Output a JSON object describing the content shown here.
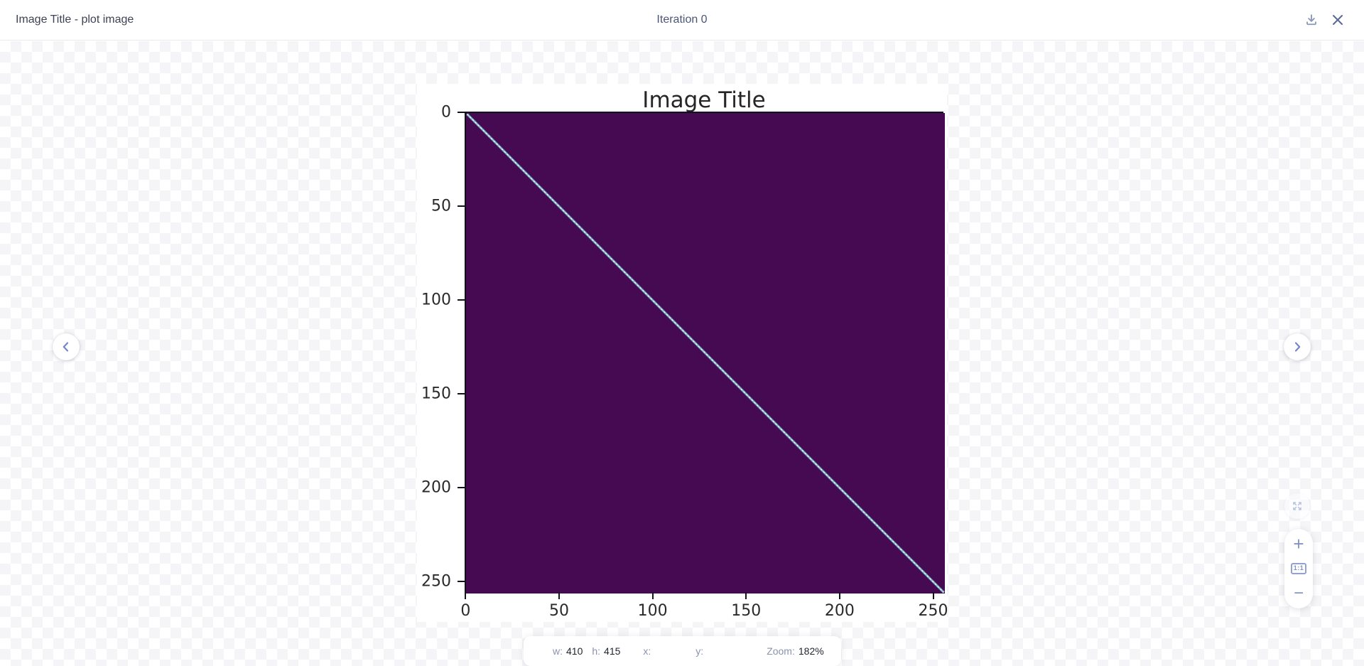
{
  "header": {
    "title": "Image Title - plot image",
    "iteration": "Iteration 0"
  },
  "chart_data": {
    "type": "heatmap",
    "title": "Image Title",
    "x_ticks": [
      0,
      50,
      100,
      150,
      200,
      250
    ],
    "y_ticks": [
      0,
      50,
      100,
      150,
      200,
      250
    ],
    "x_range": [
      -0.5,
      255.5
    ],
    "y_range": [
      255.5,
      -0.5
    ],
    "grid": false,
    "background_color": "#450a52",
    "diagonal_color": "#a8c9d2",
    "description": "256x256 matrix image, uniform dark purple field with a thin bright diagonal line running from top-left (0,0) to bottom-right (255,255)"
  },
  "zoom_controls": {
    "zoom_in": "+",
    "actual_size": "1:1",
    "zoom_out": "−"
  },
  "status_bar": {
    "items": [
      {
        "label": "w:",
        "value": "410"
      },
      {
        "label": "h:",
        "value": "415"
      },
      {
        "label": "x:",
        "value": ""
      },
      {
        "label": "y:",
        "value": ""
      },
      {
        "label": "Zoom:",
        "value": "182%"
      }
    ]
  },
  "colors": {
    "accent_blue": "#7287cb",
    "header_text": "#3d4354",
    "status_label": "#8a93b0",
    "status_value": "#21262f"
  }
}
